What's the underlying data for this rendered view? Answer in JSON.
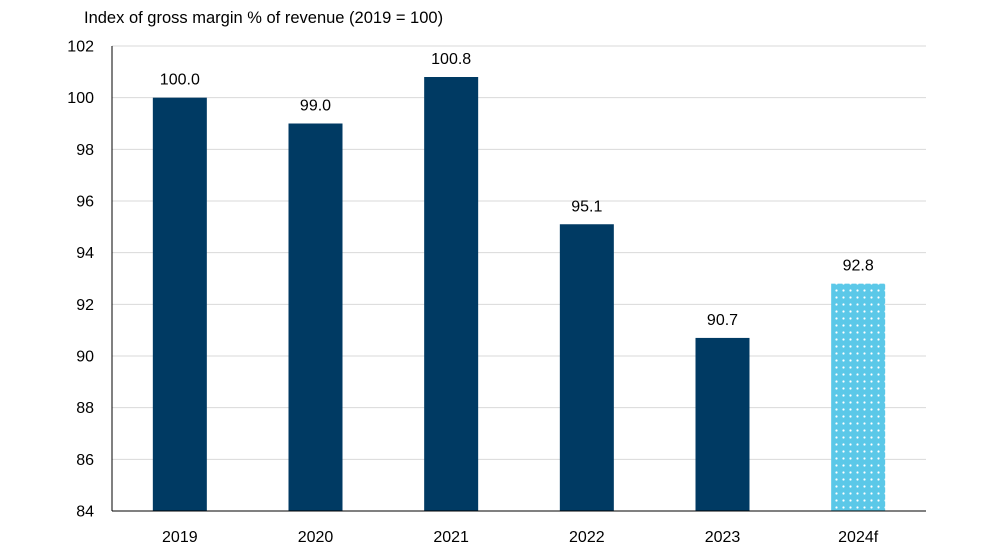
{
  "chart_data": {
    "type": "bar",
    "title": "",
    "ylabel": "Index of gross margin % of revenue (2019 = 100)",
    "xlabel": "",
    "categories": [
      "2019",
      "2020",
      "2021",
      "2022",
      "2023",
      "2024f"
    ],
    "values": [
      100.0,
      99.0,
      100.8,
      95.1,
      90.7,
      92.8
    ],
    "value_labels": [
      "100.0",
      "99.0",
      "100.8",
      "95.1",
      "90.7",
      "92.8"
    ],
    "forecast": [
      false,
      false,
      false,
      false,
      false,
      true
    ],
    "ylim": [
      84,
      102
    ],
    "yticks": [
      84,
      86,
      88,
      90,
      92,
      94,
      96,
      98,
      100,
      102
    ],
    "grid": true,
    "legend": "none",
    "colors": {
      "actual": "#003a63",
      "forecast": "#5bc8e8",
      "forecast_dots": "#ffffff",
      "grid": "#d9d9d9",
      "axis": "#000000"
    }
  }
}
